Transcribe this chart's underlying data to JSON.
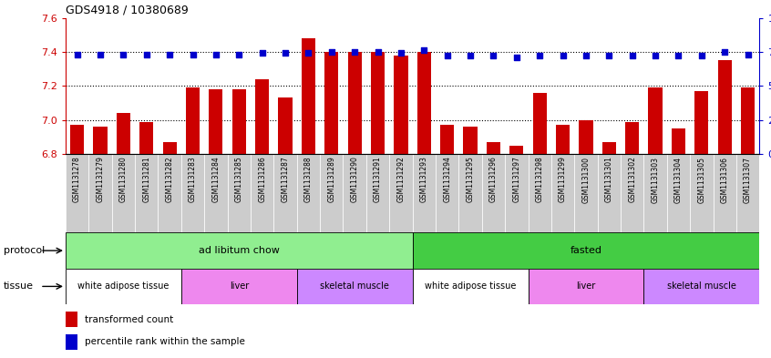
{
  "title": "GDS4918 / 10380689",
  "samples": [
    "GSM1131278",
    "GSM1131279",
    "GSM1131280",
    "GSM1131281",
    "GSM1131282",
    "GSM1131283",
    "GSM1131284",
    "GSM1131285",
    "GSM1131286",
    "GSM1131287",
    "GSM1131288",
    "GSM1131289",
    "GSM1131290",
    "GSM1131291",
    "GSM1131292",
    "GSM1131293",
    "GSM1131294",
    "GSM1131295",
    "GSM1131296",
    "GSM1131297",
    "GSM1131298",
    "GSM1131299",
    "GSM1131300",
    "GSM1131301",
    "GSM1131302",
    "GSM1131303",
    "GSM1131304",
    "GSM1131305",
    "GSM1131306",
    "GSM1131307"
  ],
  "bar_values": [
    6.97,
    6.96,
    7.04,
    6.99,
    6.87,
    7.19,
    7.18,
    7.18,
    7.24,
    7.13,
    7.48,
    7.4,
    7.4,
    7.4,
    7.38,
    7.4,
    6.97,
    6.96,
    6.87,
    6.85,
    7.16,
    6.97,
    7.0,
    6.87,
    6.99,
    7.19,
    6.95,
    7.17,
    7.35,
    7.19
  ],
  "percentile_values": [
    73,
    73,
    73,
    73,
    73,
    73,
    73,
    73,
    74,
    74,
    74,
    75,
    75,
    75,
    74,
    76,
    72,
    72,
    72,
    71,
    72,
    72,
    72,
    72,
    72,
    72,
    72,
    72,
    75,
    73
  ],
  "ylim_left": [
    6.8,
    7.6
  ],
  "ylim_right": [
    0,
    100
  ],
  "yticks_left": [
    6.8,
    7.0,
    7.2,
    7.4,
    7.6
  ],
  "yticks_right": [
    0,
    25,
    50,
    75,
    100
  ],
  "bar_color": "#cc0000",
  "dot_color": "#0000cc",
  "protocols": [
    {
      "label": "ad libitum chow",
      "start": 0,
      "end": 14,
      "color": "#90ee90"
    },
    {
      "label": "fasted",
      "start": 15,
      "end": 29,
      "color": "#44cc44"
    }
  ],
  "tissues": [
    {
      "label": "white adipose tissue",
      "start": 0,
      "end": 4,
      "color": "#ffffff"
    },
    {
      "label": "liver",
      "start": 5,
      "end": 9,
      "color": "#ee88ee"
    },
    {
      "label": "skeletal muscle",
      "start": 10,
      "end": 14,
      "color": "#cc88ff"
    },
    {
      "label": "white adipose tissue",
      "start": 15,
      "end": 19,
      "color": "#ffffff"
    },
    {
      "label": "liver",
      "start": 20,
      "end": 24,
      "color": "#ee88ee"
    },
    {
      "label": "skeletal muscle",
      "start": 25,
      "end": 29,
      "color": "#cc88ff"
    }
  ],
  "legend_bar_label": "transformed count",
  "legend_dot_label": "percentile rank within the sample",
  "protocol_label": "protocol",
  "tissue_label": "tissue",
  "tick_bg_color": "#cccccc",
  "background_color": "#ffffff"
}
